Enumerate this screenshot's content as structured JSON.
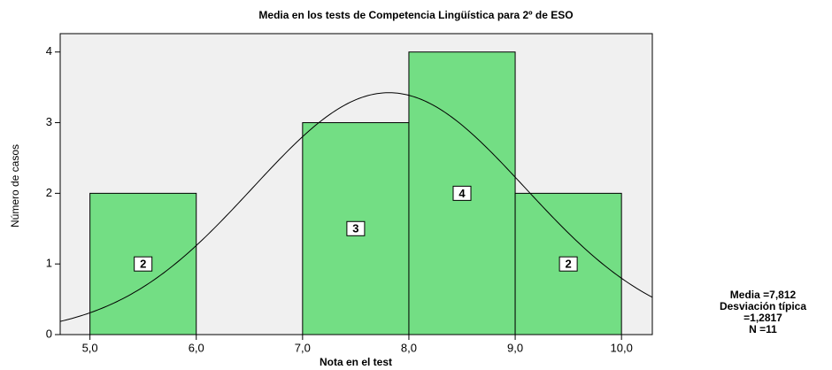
{
  "chart_data": {
    "type": "histogram",
    "title": "Media en los tests de Competencia Lingüística para 2º de ESO",
    "x_label": "Nota en el test",
    "y_label": "Número de casos",
    "bins": [
      5,
      6,
      7,
      8,
      9,
      10
    ],
    "values": [
      2,
      0,
      3,
      4,
      2
    ],
    "value_labels": [
      "2",
      null,
      "3",
      "4",
      "2"
    ],
    "color": "#73de84",
    "xlim": [
      4.72,
      10.29
    ],
    "ylim": [
      0,
      4.26
    ],
    "xticks": [
      {
        "value": 5,
        "label": "5,0"
      },
      {
        "value": 6,
        "label": "6,0"
      },
      {
        "value": 7,
        "label": "7,0"
      },
      {
        "value": 8,
        "label": "8,0"
      },
      {
        "value": 9,
        "label": "9,0"
      },
      {
        "value": 10,
        "label": "10,0"
      }
    ],
    "yticks": [
      0,
      1,
      2,
      3,
      4
    ],
    "stats": [
      {
        "value": 7.812,
        "label": "Media =7,812"
      },
      {
        "value": 1.2817,
        "label": "Desviación típica =1,2817"
      },
      {
        "value": 11,
        "label": "N =11"
      }
    ]
  }
}
